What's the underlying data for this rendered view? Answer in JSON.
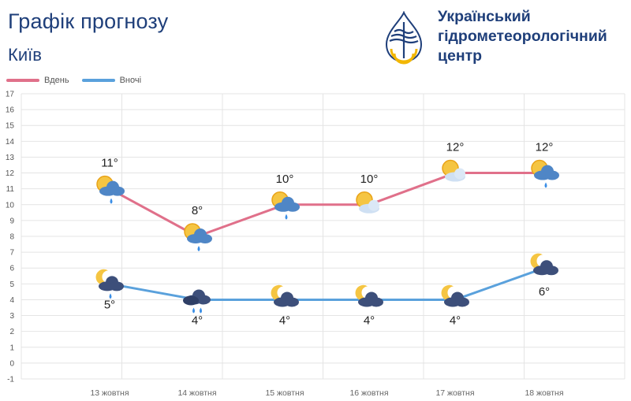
{
  "header": {
    "title": "Графік прогнозу",
    "city": "Київ",
    "org_line1": "Український",
    "org_line2": "гідрометеорологічний",
    "org_line3": "центр",
    "logo_icon": "water-drop-sun-logo-icon"
  },
  "colors": {
    "day": "#e0708a",
    "night": "#5aa1dc",
    "text": "#1f3f7a",
    "grid": "#e4e4e4"
  },
  "chart_data": {
    "type": "line",
    "categories": [
      "13 жовтня",
      "14 жовтня",
      "15 жовтня",
      "16 жовтня",
      "17 жовтня",
      "18 жовтня"
    ],
    "series": [
      {
        "name": "Вдень",
        "values": [
          11,
          8,
          10,
          10,
          12,
          12
        ],
        "labels": [
          "11°",
          "8°",
          "10°",
          "10°",
          "12°",
          "12°"
        ],
        "icons": [
          "sun-cloud-rain-icon",
          "sun-cloud-rain-icon",
          "sun-cloud-rain-icon",
          "sun-cloud-icon",
          "sun-cloud-icon",
          "sun-cloud-rain-icon"
        ]
      },
      {
        "name": "Вночі",
        "values": [
          5,
          4,
          4,
          4,
          4,
          6
        ],
        "labels": [
          "5°",
          "4°",
          "4°",
          "4°",
          "4°",
          "6°"
        ],
        "icons": [
          "moon-cloud-rain-icon",
          "cloud-heavy-rain-icon",
          "moon-cloud-icon",
          "moon-cloud-icon",
          "moon-cloud-icon",
          "moon-cloud-icon"
        ]
      }
    ],
    "ylim": [
      -1,
      17
    ],
    "yticks": [
      "-1",
      "0",
      "1",
      "2",
      "3",
      "4",
      "5",
      "6",
      "7",
      "8",
      "9",
      "10",
      "11",
      "12",
      "13",
      "14",
      "15",
      "16",
      "17"
    ],
    "grid": true,
    "legend_position": "top-left"
  }
}
